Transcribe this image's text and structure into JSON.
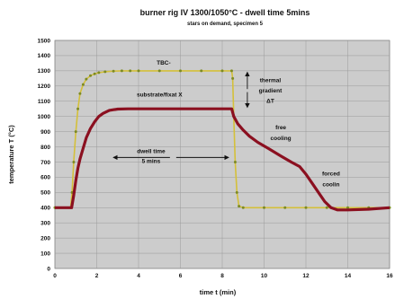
{
  "chart_data": {
    "type": "line",
    "title": "burner rig IV 1300/1050°C - dwell time 5mins",
    "subtitle": "stars on demand, specimen 5",
    "xlabel": "time t (min)",
    "ylabel": "temperature T (°C)",
    "xlim": [
      0,
      16
    ],
    "ylim": [
      0,
      1500
    ],
    "xticks": [
      "0",
      "2",
      "4",
      "6",
      "8",
      "10",
      "12",
      "14",
      "16"
    ],
    "yticks": [
      "0",
      "100",
      "200",
      "300",
      "400",
      "500",
      "600",
      "700",
      "800",
      "900",
      "1000",
      "1100",
      "1200",
      "1300",
      "1400",
      "1500"
    ],
    "plot_background": "#cccccc",
    "grid": true,
    "series": [
      {
        "name": "TBC-",
        "color": "#d4c03a",
        "marker_color": "#7d8a22",
        "x": [
          0,
          0.75,
          0.82,
          0.9,
          1.0,
          1.1,
          1.2,
          1.35,
          1.5,
          1.7,
          1.9,
          2.1,
          2.4,
          2.8,
          3.2,
          3.6,
          4,
          5,
          6,
          7,
          8,
          8.45,
          8.5,
          8.55,
          8.62,
          8.7,
          8.8,
          9,
          10,
          11,
          12,
          13,
          14,
          15,
          16
        ],
        "y": [
          400,
          400,
          500,
          700,
          900,
          1050,
          1150,
          1210,
          1245,
          1268,
          1280,
          1288,
          1294,
          1298,
          1300,
          1300,
          1300,
          1300,
          1300,
          1300,
          1300,
          1300,
          1250,
          1000,
          700,
          500,
          410,
          400,
          400,
          400,
          400,
          400,
          400,
          400,
          400
        ]
      },
      {
        "name": "substrate/fixat X",
        "color": "#8b1020",
        "x": [
          0,
          0.8,
          0.9,
          1.0,
          1.1,
          1.2,
          1.35,
          1.5,
          1.7,
          1.9,
          2.1,
          2.3,
          2.6,
          3.0,
          3.5,
          4,
          5,
          6,
          7,
          8,
          8.45,
          8.55,
          8.75,
          9.0,
          9.3,
          9.7,
          10.2,
          10.8,
          11.3,
          11.7,
          12.0,
          12.3,
          12.6,
          12.9,
          13.2,
          13.5,
          14,
          15,
          16
        ],
        "y": [
          400,
          400,
          480,
          580,
          660,
          720,
          790,
          860,
          920,
          965,
          1000,
          1020,
          1040,
          1048,
          1050,
          1050,
          1050,
          1050,
          1050,
          1050,
          1050,
          1000,
          950,
          910,
          870,
          830,
          790,
          740,
          700,
          670,
          620,
          560,
          500,
          440,
          400,
          385,
          385,
          390,
          400
        ]
      }
    ],
    "annotations": [
      {
        "text": "TBC-",
        "x": 5.2,
        "y": 1340
      },
      {
        "text": "substrate/fixat X",
        "x": 5.0,
        "y": 1130
      },
      {
        "text": "thermal",
        "x": 10.3,
        "y": 1225
      },
      {
        "text": "gradient",
        "x": 10.3,
        "y": 1158
      },
      {
        "text": "ΔT",
        "x": 10.3,
        "y": 1090
      },
      {
        "text": "free",
        "x": 10.8,
        "y": 915
      },
      {
        "text": "cooling",
        "x": 10.8,
        "y": 845
      },
      {
        "text": "dwell time",
        "x": 4.6,
        "y": 760
      },
      {
        "text": "5 mins",
        "x": 4.6,
        "y": 695
      },
      {
        "text": "forced",
        "x": 13.2,
        "y": 610
      },
      {
        "text": "coolin",
        "x": 13.2,
        "y": 540
      }
    ]
  }
}
